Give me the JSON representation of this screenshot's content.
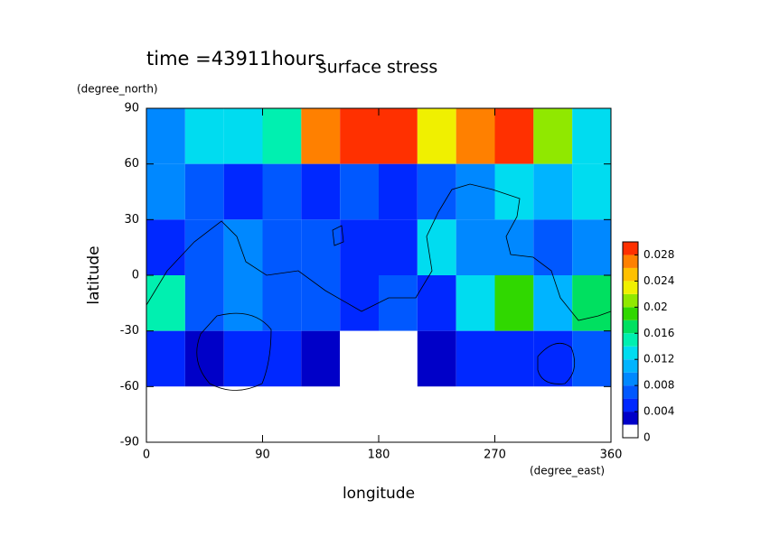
{
  "chart_data": {
    "type": "contour",
    "title": "surface stress",
    "subtitle": "time =43911hours",
    "x_label": "longitude",
    "y_label": "latitude",
    "x_units": "(degree_east)",
    "y_units": "(degree_north)",
    "x": [
      15,
      45,
      75,
      105,
      135,
      165,
      195,
      225,
      255,
      285,
      315,
      345
    ],
    "y": [
      75,
      45,
      15,
      -15,
      -45,
      -75
    ],
    "z": [
      [
        0.008,
        0.012,
        0.012,
        0.014,
        0.026,
        0.03,
        0.03,
        0.022,
        0.026,
        0.03,
        0.02,
        0.012
      ],
      [
        0.008,
        0.006,
        0.004,
        0.006,
        0.004,
        0.006,
        0.004,
        0.006,
        0.008,
        0.012,
        0.01,
        0.012
      ],
      [
        0.004,
        0.006,
        0.008,
        0.006,
        0.006,
        0.004,
        0.004,
        0.012,
        0.008,
        0.008,
        0.006,
        0.008
      ],
      [
        0.014,
        0.006,
        0.008,
        0.006,
        0.006,
        0.004,
        0.006,
        0.004,
        0.012,
        0.018,
        0.01,
        0.016
      ],
      [
        0.004,
        0.002,
        0.004,
        0.004,
        0.002,
        0,
        0,
        0.002,
        0.004,
        0.004,
        0.004,
        0.006
      ],
      [
        0,
        0,
        0,
        0,
        0,
        0,
        0,
        0,
        0,
        0,
        0,
        0
      ]
    ],
    "levels": [
      0,
      0.002,
      0.004,
      0.006,
      0.008,
      0.01,
      0.012,
      0.014,
      0.016,
      0.018,
      0.02,
      0.022,
      0.024,
      0.026,
      0.028,
      0.03
    ],
    "colors": [
      "#ffffff",
      "#0000c8",
      "#0028ff",
      "#0058ff",
      "#0088ff",
      "#00b4ff",
      "#00dcf0",
      "#00f0b0",
      "#00e060",
      "#30d800",
      "#90e800",
      "#f0f000",
      "#ffc000",
      "#ff8000",
      "#ff3000"
    ],
    "colorbar_ticks": [
      0,
      0.004,
      0.008,
      0.012,
      0.016,
      0.02,
      0.024,
      0.028
    ],
    "xlim": [
      0,
      360
    ],
    "xticks": [
      0,
      90,
      180,
      270,
      360
    ],
    "ylim": [
      -90,
      90
    ],
    "yticks": [
      -90,
      -60,
      -30,
      0,
      30,
      60,
      90
    ]
  }
}
